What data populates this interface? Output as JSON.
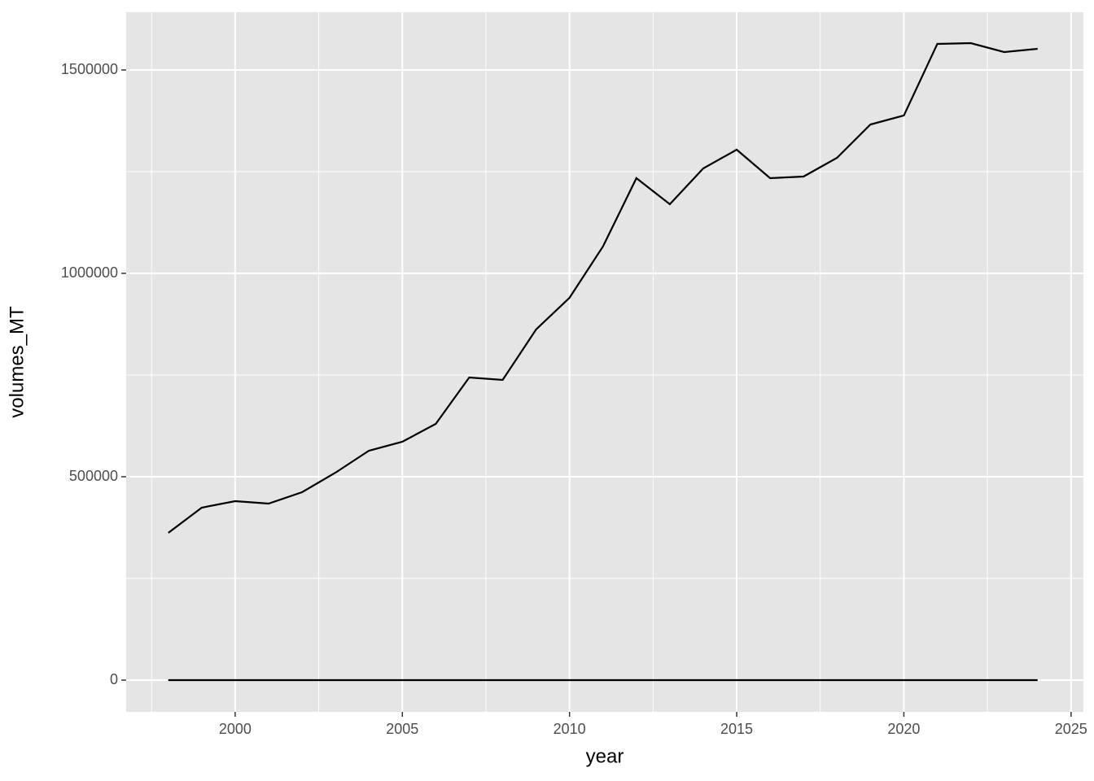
{
  "chart_data": {
    "type": "line",
    "x_label": "year",
    "y_label": "volumes_MT",
    "x": [
      1998,
      1999,
      2000,
      2001,
      2002,
      2003,
      2004,
      2005,
      2006,
      2007,
      2008,
      2009,
      2010,
      2011,
      2012,
      2013,
      2014,
      2015,
      2016,
      2017,
      2018,
      2019,
      2020,
      2021,
      2022,
      2023,
      2024
    ],
    "series": [
      {
        "color": "#000000",
        "values": [
          362000,
          424000,
          440000,
          434000,
          462000,
          510000,
          564000,
          586000,
          630000,
          744000,
          738000,
          862000,
          940000,
          1066000,
          1234000,
          1170000,
          1258000,
          1304000,
          1234000,
          1238000,
          1284000,
          1366000,
          1388000,
          1564000,
          1566000,
          1544000,
          1552000
        ]
      },
      {
        "color": "#000000",
        "values": [
          0,
          0,
          0,
          0,
          0,
          0,
          0,
          0,
          0,
          0,
          0,
          0,
          0,
          0,
          0,
          0,
          0,
          0,
          0,
          0,
          0,
          0,
          0,
          0,
          0,
          0,
          0
        ]
      }
    ],
    "xlim": [
      1996.74,
      2025.37
    ],
    "xticks": [
      2000,
      2005,
      2010,
      2015,
      2020,
      2025
    ],
    "ylim": [
      -78000,
      1642000
    ],
    "yticks": [
      0,
      500000,
      1000000,
      1500000
    ],
    "grid": true,
    "minor_grid": true,
    "background": "#e5e5e5"
  }
}
